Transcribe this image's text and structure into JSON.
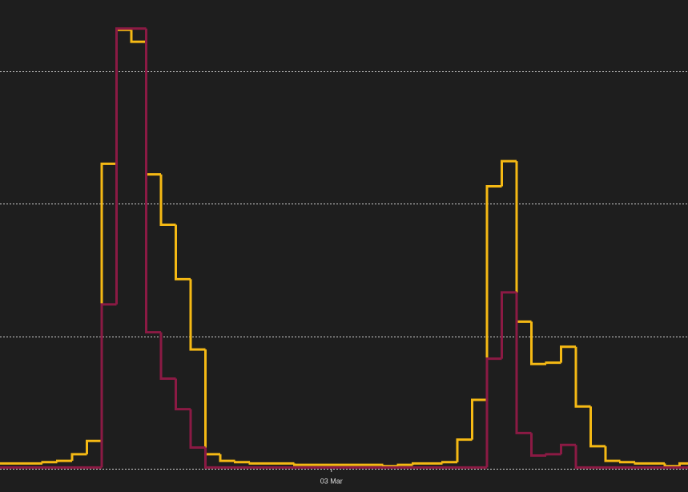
{
  "chart_data": {
    "type": "step",
    "categories": [
      null,
      null,
      null,
      null,
      null,
      null,
      null,
      null,
      null,
      null,
      null,
      null,
      null,
      null,
      null,
      null,
      null,
      null,
      null,
      null,
      null,
      null,
      "03 Mar",
      null,
      null,
      null,
      null,
      null,
      null,
      null,
      null,
      null,
      null,
      null,
      null,
      null,
      null,
      null,
      null,
      null,
      null,
      null,
      null,
      null,
      null,
      null,
      null
    ],
    "series": [
      {
        "color": "#f5b914",
        "values": [
          0.04,
          0.04,
          0.04,
          0.05,
          0.06,
          0.11,
          0.21,
          2.3,
          3.31,
          3.22,
          2.22,
          1.84,
          1.43,
          0.9,
          0.11,
          0.06,
          0.05,
          0.04,
          0.04,
          0.04,
          0.03,
          0.03,
          0.03,
          0.03,
          0.03,
          0.03,
          0.02,
          0.03,
          0.04,
          0.04,
          0.05,
          0.22,
          0.52,
          2.13,
          2.32,
          1.11,
          0.79,
          0.8,
          0.92,
          0.47,
          0.17,
          0.06,
          0.05,
          0.04,
          0.04,
          0.02,
          0.04
        ]
      },
      {
        "color": "#8b1a44",
        "values": [
          0.01,
          0.01,
          0.01,
          0.01,
          0.01,
          0.01,
          0.01,
          1.24,
          3.32,
          3.32,
          1.03,
          0.68,
          0.45,
          0.16,
          0.01,
          0.01,
          0.01,
          0.01,
          0.01,
          0.01,
          0.01,
          0.01,
          0.01,
          0.01,
          0.01,
          0.01,
          0.01,
          0.01,
          0.01,
          0.01,
          0.01,
          0.01,
          0.01,
          0.83,
          1.33,
          0.27,
          0.1,
          0.11,
          0.18,
          0.01,
          0.01,
          0.01,
          0.01,
          0.01,
          0.01,
          0.01,
          0.01
        ]
      }
    ],
    "ylim": [
      -0.175,
      3.535
    ],
    "yticks": [
      0,
      1,
      2,
      3
    ],
    "grid": true
  }
}
